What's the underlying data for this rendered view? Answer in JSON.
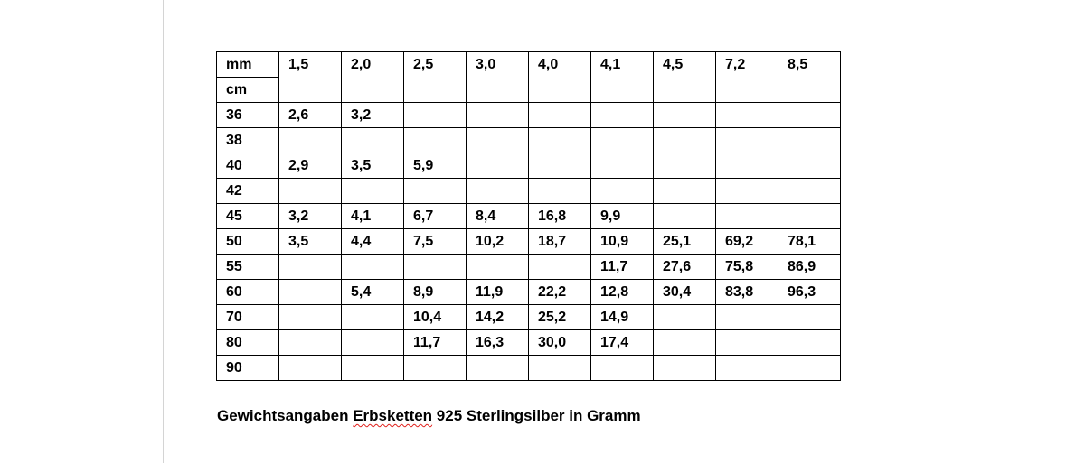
{
  "table": {
    "corner_top": "mm",
    "corner_bottom": "cm",
    "columns": [
      "1,5",
      "2,0",
      "2,5",
      "3,0",
      "4,0",
      "4,1",
      "4,5",
      "7,2",
      "8,5"
    ],
    "rows": [
      {
        "cm": "36",
        "values": [
          "2,6",
          "3,2",
          "",
          "",
          "",
          "",
          "",
          "",
          ""
        ]
      },
      {
        "cm": "38",
        "values": [
          "",
          "",
          "",
          "",
          "",
          "",
          "",
          "",
          ""
        ]
      },
      {
        "cm": "40",
        "values": [
          "2,9",
          "3,5",
          "5,9",
          "",
          "",
          "",
          "",
          "",
          ""
        ]
      },
      {
        "cm": "42",
        "values": [
          "",
          "",
          "",
          "",
          "",
          "",
          "",
          "",
          ""
        ]
      },
      {
        "cm": "45",
        "values": [
          "3,2",
          "4,1",
          "6,7",
          "8,4",
          "16,8",
          "9,9",
          "",
          "",
          ""
        ]
      },
      {
        "cm": "50",
        "values": [
          "3,5",
          "4,4",
          "7,5",
          "10,2",
          "18,7",
          "10,9",
          "25,1",
          "69,2",
          "78,1"
        ]
      },
      {
        "cm": "55",
        "values": [
          "",
          "",
          "",
          "",
          "",
          "11,7",
          "27,6",
          "75,8",
          "86,9"
        ]
      },
      {
        "cm": "60",
        "values": [
          "",
          "5,4",
          "8,9",
          "11,9",
          "22,2",
          "12,8",
          "30,4",
          "83,8",
          "96,3"
        ]
      },
      {
        "cm": "70",
        "values": [
          "",
          "",
          "10,4",
          "14,2",
          "25,2",
          "14,9",
          "",
          "",
          ""
        ]
      },
      {
        "cm": "80",
        "values": [
          "",
          "",
          "11,7",
          "16,3",
          "30,0",
          "17,4",
          "",
          "",
          ""
        ]
      },
      {
        "cm": "90",
        "values": [
          "",
          "",
          "",
          "",
          "",
          "",
          "",
          "",
          ""
        ]
      }
    ]
  },
  "caption": {
    "before": "Gewichtsangaben ",
    "misspelled": "Erbsketten",
    "after": " 925 Sterlingsilber in Gramm",
    "spellcheck_color": "#e0201b"
  }
}
